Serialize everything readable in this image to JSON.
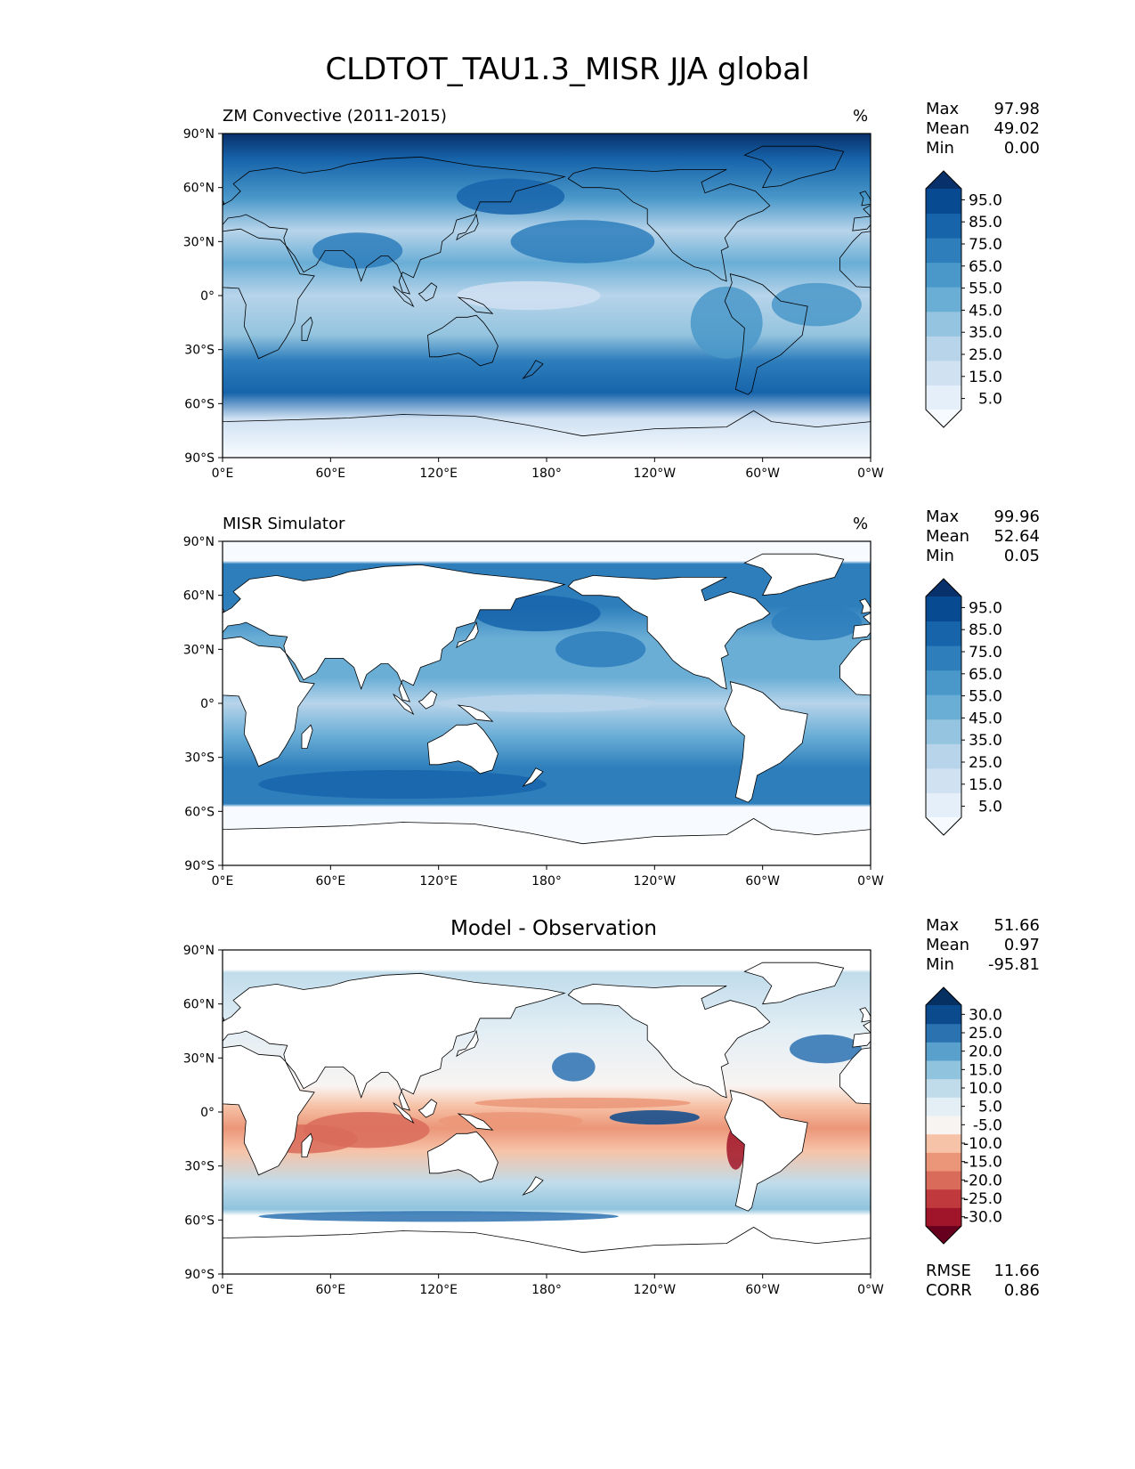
{
  "title": "CLDTOT_TAU1.3_MISR JJA global",
  "panels": [
    {
      "left_title": "ZM Convective (2011-2015)",
      "center_title": "",
      "units": "%",
      "stats": [
        {
          "label": "Max",
          "value": "97.98"
        },
        {
          "label": "Mean",
          "value": "49.02"
        },
        {
          "label": "Min",
          "value": "0.00"
        }
      ],
      "colorbar": {
        "ticks": [
          "95.0",
          "85.0",
          "75.0",
          "65.0",
          "55.0",
          "45.0",
          "35.0",
          "25.0",
          "15.0",
          "5.0"
        ],
        "colors": [
          "#f7fbff",
          "#e5eff9",
          "#d0e1f2",
          "#b7d4ea",
          "#94c4df",
          "#6aaed6",
          "#4a98c9",
          "#2e7ebc",
          "#1764ab",
          "#084a91",
          "#08306b"
        ]
      }
    },
    {
      "left_title": "MISR Simulator",
      "center_title": "",
      "units": "%",
      "stats": [
        {
          "label": "Max",
          "value": "99.96"
        },
        {
          "label": "Mean",
          "value": "52.64"
        },
        {
          "label": "Min",
          "value": "0.05"
        }
      ],
      "colorbar": {
        "ticks": [
          "95.0",
          "85.0",
          "75.0",
          "65.0",
          "55.0",
          "45.0",
          "35.0",
          "25.0",
          "15.0",
          "5.0"
        ],
        "colors": [
          "#f7fbff",
          "#e5eff9",
          "#d0e1f2",
          "#b7d4ea",
          "#94c4df",
          "#6aaed6",
          "#4a98c9",
          "#2e7ebc",
          "#1764ab",
          "#084a91",
          "#08306b"
        ]
      }
    },
    {
      "left_title": "",
      "center_title": "Model - Observation",
      "units": "",
      "stats": [
        {
          "label": "Max",
          "value": "51.66"
        },
        {
          "label": "Mean",
          "value": "0.97"
        },
        {
          "label": "Min",
          "value": "-95.81"
        }
      ],
      "extra_stats": [
        {
          "label": "RMSE",
          "value": "11.66"
        },
        {
          "label": "CORR",
          "value": "0.86"
        }
      ],
      "colorbar": {
        "ticks": [
          "30.0",
          "25.0",
          "20.0",
          "15.0",
          "10.0",
          "5.0",
          "-5.0",
          "-10.0",
          "-15.0",
          "-20.0",
          "-25.0",
          "-30.0"
        ],
        "colors": [
          "#67001f",
          "#a01529",
          "#c0393c",
          "#d96b5a",
          "#eb9678",
          "#f7c3a8",
          "#f8f4f2",
          "#e3eef5",
          "#c0dceb",
          "#90c3dd",
          "#5aa0cd",
          "#2b72b1",
          "#0a4a8d",
          "#053061"
        ]
      }
    }
  ],
  "axes": {
    "lat_ticks": [
      "90°N",
      "60°N",
      "30°N",
      "0°",
      "30°S",
      "60°S",
      "90°S"
    ],
    "lon_ticks": [
      "0°E",
      "60°E",
      "120°E",
      "180°",
      "120°W",
      "60°W",
      "0°W"
    ]
  },
  "chart_data": [
    {
      "type": "heatmap",
      "title": "ZM Convective (2011-2015)",
      "units": "%",
      "x_range": [
        0,
        360
      ],
      "y_range": [
        -90,
        90
      ],
      "stats": {
        "max": 97.98,
        "mean": 49.02,
        "min": 0.0
      },
      "levels": [
        5,
        15,
        25,
        35,
        45,
        55,
        65,
        75,
        85,
        95
      ]
    },
    {
      "type": "heatmap",
      "title": "MISR Simulator",
      "units": "%",
      "x_range": [
        0,
        360
      ],
      "y_range": [
        -90,
        90
      ],
      "stats": {
        "max": 99.96,
        "mean": 52.64,
        "min": 0.05
      },
      "levels": [
        5,
        15,
        25,
        35,
        45,
        55,
        65,
        75,
        85,
        95
      ]
    },
    {
      "type": "heatmap",
      "title": "Model - Observation",
      "x_range": [
        0,
        360
      ],
      "y_range": [
        -90,
        90
      ],
      "stats": {
        "max": 51.66,
        "mean": 0.97,
        "min": -95.81,
        "rmse": 11.66,
        "corr": 0.86
      },
      "levels": [
        -30,
        -25,
        -20,
        -15,
        -10,
        -5,
        5,
        10,
        15,
        20,
        25,
        30
      ]
    }
  ]
}
